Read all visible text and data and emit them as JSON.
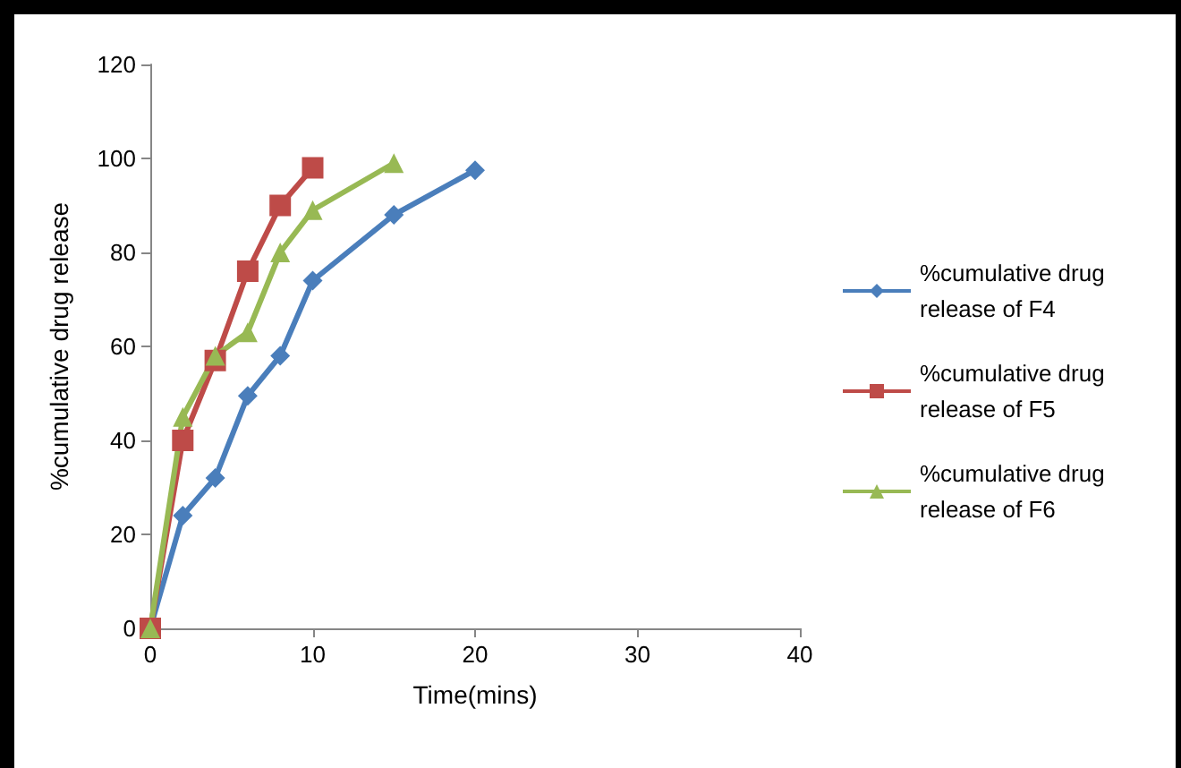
{
  "chart_data": {
    "type": "line",
    "xlabel": "Time(mins)",
    "ylabel": "%cumulative drug release",
    "xlim": [
      0,
      40
    ],
    "xticks": [
      0,
      10,
      20,
      30,
      40
    ],
    "ylim": [
      0,
      120
    ],
    "yticks": [
      0,
      20,
      40,
      60,
      80,
      100,
      120
    ],
    "grid": false,
    "legend": "right",
    "series": [
      {
        "name": "%cumulative drug release of F4",
        "color": "#4a7ebb",
        "marker": "diamond",
        "x": [
          0,
          2,
          4,
          6,
          8,
          10,
          15,
          20
        ],
        "values": [
          0,
          24,
          32,
          49.5,
          58,
          74,
          88,
          97.5
        ]
      },
      {
        "name": "%cumulative drug release of F5",
        "color": "#be4b48",
        "marker": "square",
        "x": [
          0,
          2,
          4,
          6,
          8,
          10
        ],
        "values": [
          0,
          40,
          57,
          76,
          90,
          98
        ]
      },
      {
        "name": "%cumulative drug release of F6",
        "color": "#98b954",
        "marker": "triangle",
        "x": [
          0,
          2,
          4,
          6,
          8,
          10,
          15
        ],
        "values": [
          0,
          45,
          58,
          63,
          80,
          89,
          99
        ]
      }
    ]
  }
}
